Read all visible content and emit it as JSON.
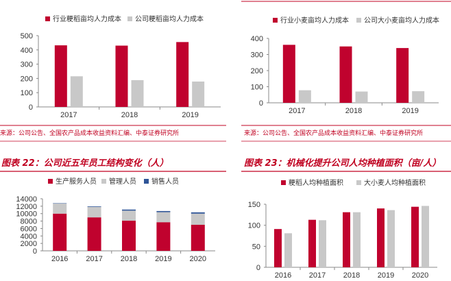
{
  "colors": {
    "red": "#c0022e",
    "gray": "#c8c8c8",
    "blue": "#2f5597",
    "accent": "#c00020"
  },
  "panels": {
    "tl": {
      "source": "来源：公司公告、全国农产品成本收益资料汇编、中泰证券研究所"
    },
    "tr": {
      "source": "来源：公司公告、全国农产品成本收益资料汇编、中泰证券研究所"
    },
    "bl": {
      "title": "图表 22：公司近五年员工结构变化（人）"
    },
    "br": {
      "title": "图表 23：机械化提升公司人均种植面积（亩/人）"
    }
  },
  "chart_data": [
    {
      "id": "tl",
      "type": "bar",
      "categories": [
        "2017",
        "2018",
        "2019"
      ],
      "series": [
        {
          "name": "行业粳稻亩均人力成本",
          "values": [
            432,
            430,
            455
          ]
        },
        {
          "name": "公司粳稻亩均人力成本",
          "values": [
            215,
            188,
            178
          ]
        }
      ],
      "ylim": [
        0,
        500
      ],
      "yticks": [
        "0",
        "100",
        "200",
        "300",
        "400",
        "500"
      ]
    },
    {
      "id": "tr",
      "type": "bar",
      "categories": [
        "2017",
        "2018",
        "2019"
      ],
      "series": [
        {
          "name": "行业小麦亩均人力成本",
          "values": [
            360,
            350,
            340
          ]
        },
        {
          "name": "公司大小麦亩均人力成本",
          "values": [
            78,
            70,
            72
          ]
        }
      ],
      "ylim": [
        0,
        400
      ],
      "yticks": [
        "0",
        "100",
        "200",
        "300",
        "400"
      ]
    },
    {
      "id": "bl",
      "type": "bar",
      "stacked": true,
      "categories": [
        "2016",
        "2017",
        "2018",
        "2019",
        "2020"
      ],
      "series": [
        {
          "name": "生产服务人员",
          "values": [
            10000,
            9000,
            8100,
            7700,
            7000
          ]
        },
        {
          "name": "管理人员",
          "values": [
            2700,
            2800,
            2700,
            2700,
            3000
          ]
        },
        {
          "name": "销售人员",
          "values": [
            100,
            150,
            300,
            300,
            350
          ]
        }
      ],
      "ylim": [
        0,
        14000
      ],
      "yticks": [
        "0",
        "2000",
        "4000",
        "6000",
        "8000",
        "10000",
        "12000",
        "14000"
      ]
    },
    {
      "id": "br",
      "type": "bar",
      "categories": [
        "2016",
        "2017",
        "2018",
        "2019",
        "2020"
      ],
      "series": [
        {
          "name": "粳稻人均种植面积",
          "values": [
            91,
            113,
            131,
            140,
            144
          ]
        },
        {
          "name": "大小麦人均种植面积",
          "values": [
            81,
            112,
            131,
            136,
            146
          ]
        }
      ],
      "ylim": [
        0,
        150
      ],
      "yticks": [
        "0",
        "50",
        "100",
        "150"
      ]
    }
  ]
}
